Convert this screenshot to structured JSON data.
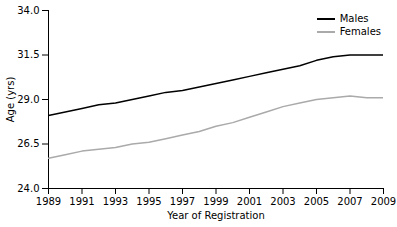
{
  "chart_data": {
    "type": "line",
    "x": [
      1989,
      1990,
      1991,
      1992,
      1993,
      1994,
      1995,
      1996,
      1997,
      1998,
      1999,
      2000,
      2001,
      2002,
      2003,
      2004,
      2005,
      2006,
      2007,
      2008,
      2009
    ],
    "series": [
      {
        "name": "Males",
        "color": "#000000",
        "values": [
          28.1,
          28.3,
          28.5,
          28.7,
          28.8,
          29.0,
          29.2,
          29.4,
          29.5,
          29.7,
          29.9,
          30.1,
          30.3,
          30.5,
          30.7,
          30.9,
          31.2,
          31.4,
          31.5,
          31.5,
          31.5
        ]
      },
      {
        "name": "Females",
        "color": "#aaaaaa",
        "values": [
          25.7,
          25.9,
          26.1,
          26.2,
          26.3,
          26.5,
          26.6,
          26.8,
          27.0,
          27.2,
          27.5,
          27.7,
          28.0,
          28.3,
          28.6,
          28.8,
          29.0,
          29.1,
          29.2,
          29.1,
          29.1
        ]
      }
    ],
    "xlabel": "Year of Registration",
    "ylabel": "Age (yrs)",
    "xlim": [
      1989,
      2009
    ],
    "xticks": [
      1989,
      1991,
      1993,
      1995,
      1997,
      1999,
      2001,
      2003,
      2005,
      2007,
      2009
    ],
    "ylim": [
      24.0,
      34.0
    ],
    "yticks": [
      {
        "value": 24.0,
        "label": "24.0"
      },
      {
        "value": 26.5,
        "label": "26.5"
      },
      {
        "value": 29.0,
        "label": "29.0"
      },
      {
        "value": 31.5,
        "label": "31.5"
      },
      {
        "value": 34.0,
        "label": "34.0"
      }
    ],
    "legend": "upper right",
    "grid": false
  }
}
